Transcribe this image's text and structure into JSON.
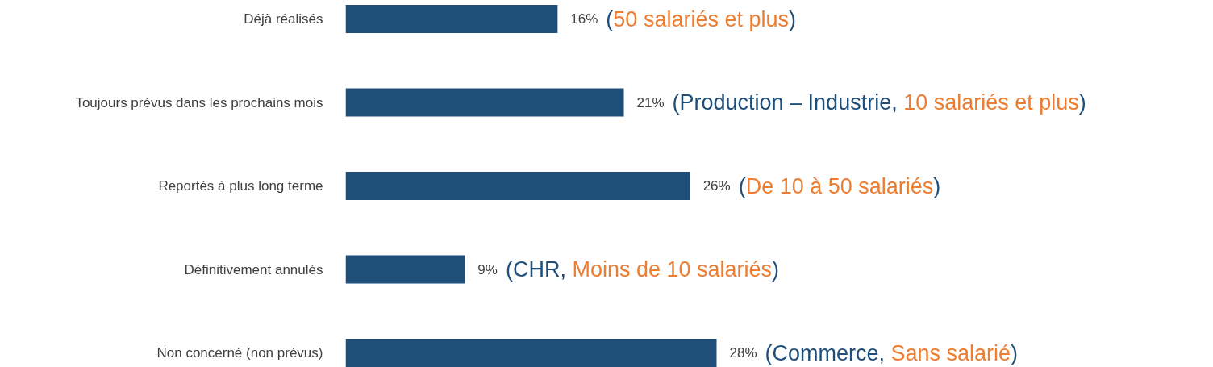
{
  "chart_data": {
    "type": "bar",
    "orientation": "horizontal",
    "categories": [
      "Déjà réalisés",
      "Toujours prévus dans les prochains mois",
      "Reportés à plus long terme",
      "Définitivement annulés",
      "Non concerné (non prévus)"
    ],
    "values": [
      16,
      21,
      26,
      9,
      28
    ],
    "value_labels": [
      "16%",
      "21%",
      "26%",
      "9%",
      "28%"
    ],
    "color": "#1f4e79",
    "tick_labels": "y",
    "grid": false,
    "annotations": [
      {
        "text": "(50 salariés et plus)",
        "x": 16,
        "y": "Déjà réalisés"
      },
      {
        "text": "(Production – Industrie, 10 salariés et plus)",
        "x": 21,
        "y": "Toujours prévus dans les prochains mois"
      },
      {
        "text": "(De 10 à 50 salariés)",
        "x": 26,
        "y": "Reportés à plus long terme"
      },
      {
        "text": "(CHR, Moins de 10 salariés)",
        "x": 9,
        "y": "Définitivement annulés"
      },
      {
        "text": "(Commerce, Sans salarié)",
        "x": 28,
        "y": "Non concerné (non prévus)"
      }
    ]
  }
}
